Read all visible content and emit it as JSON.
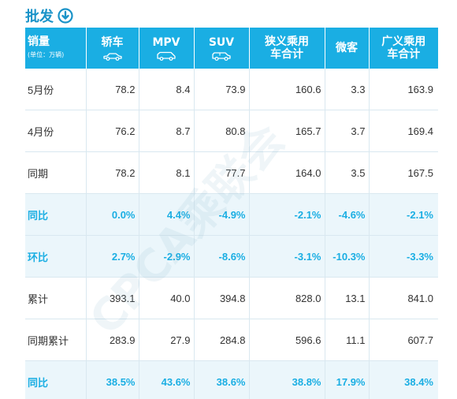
{
  "title": "批发",
  "colors": {
    "accent": "#1aaee3",
    "header_bg": "#1aaee3",
    "highlight_bg": "#ebf6fb"
  },
  "header": {
    "rowhead_main": "销量",
    "rowhead_unit": "(单位：万辆)",
    "columns": [
      {
        "label": "轿车",
        "icon": "sedan-icon"
      },
      {
        "label": "MPV",
        "icon": "mpv-icon"
      },
      {
        "label": "SUV",
        "icon": "suv-icon"
      },
      {
        "label": "狭义乘用车合计",
        "icon": ""
      },
      {
        "label": "微客",
        "icon": ""
      },
      {
        "label": "广义乘用车合计",
        "icon": ""
      }
    ]
  },
  "rows": [
    {
      "label": "5月份",
      "values": [
        "78.2",
        "8.4",
        "73.9",
        "160.6",
        "3.3",
        "163.9"
      ],
      "highlight": false
    },
    {
      "label": "4月份",
      "values": [
        "76.2",
        "8.7",
        "80.8",
        "165.7",
        "3.7",
        "169.4"
      ],
      "highlight": false
    },
    {
      "label": "同期",
      "values": [
        "78.2",
        "8.1",
        "77.7",
        "164.0",
        "3.5",
        "167.5"
      ],
      "highlight": false
    },
    {
      "label": "同比",
      "values": [
        "0.0%",
        "4.4%",
        "-4.9%",
        "-2.1%",
        "-4.6%",
        "-2.1%"
      ],
      "highlight": true
    },
    {
      "label": "环比",
      "values": [
        "2.7%",
        "-2.9%",
        "-8.6%",
        "-3.1%",
        "-10.3%",
        "-3.3%"
      ],
      "highlight": true
    },
    {
      "label": "累计",
      "values": [
        "393.1",
        "40.0",
        "394.8",
        "828.0",
        "13.1",
        "841.0"
      ],
      "highlight": false
    },
    {
      "label": "同期累计",
      "values": [
        "283.9",
        "27.9",
        "284.8",
        "596.6",
        "11.1",
        "607.7"
      ],
      "highlight": false
    },
    {
      "label": "同比",
      "values": [
        "38.5%",
        "43.6%",
        "38.6%",
        "38.8%",
        "17.9%",
        "38.4%"
      ],
      "highlight": true
    }
  ],
  "watermark": "CPCA乘联会"
}
